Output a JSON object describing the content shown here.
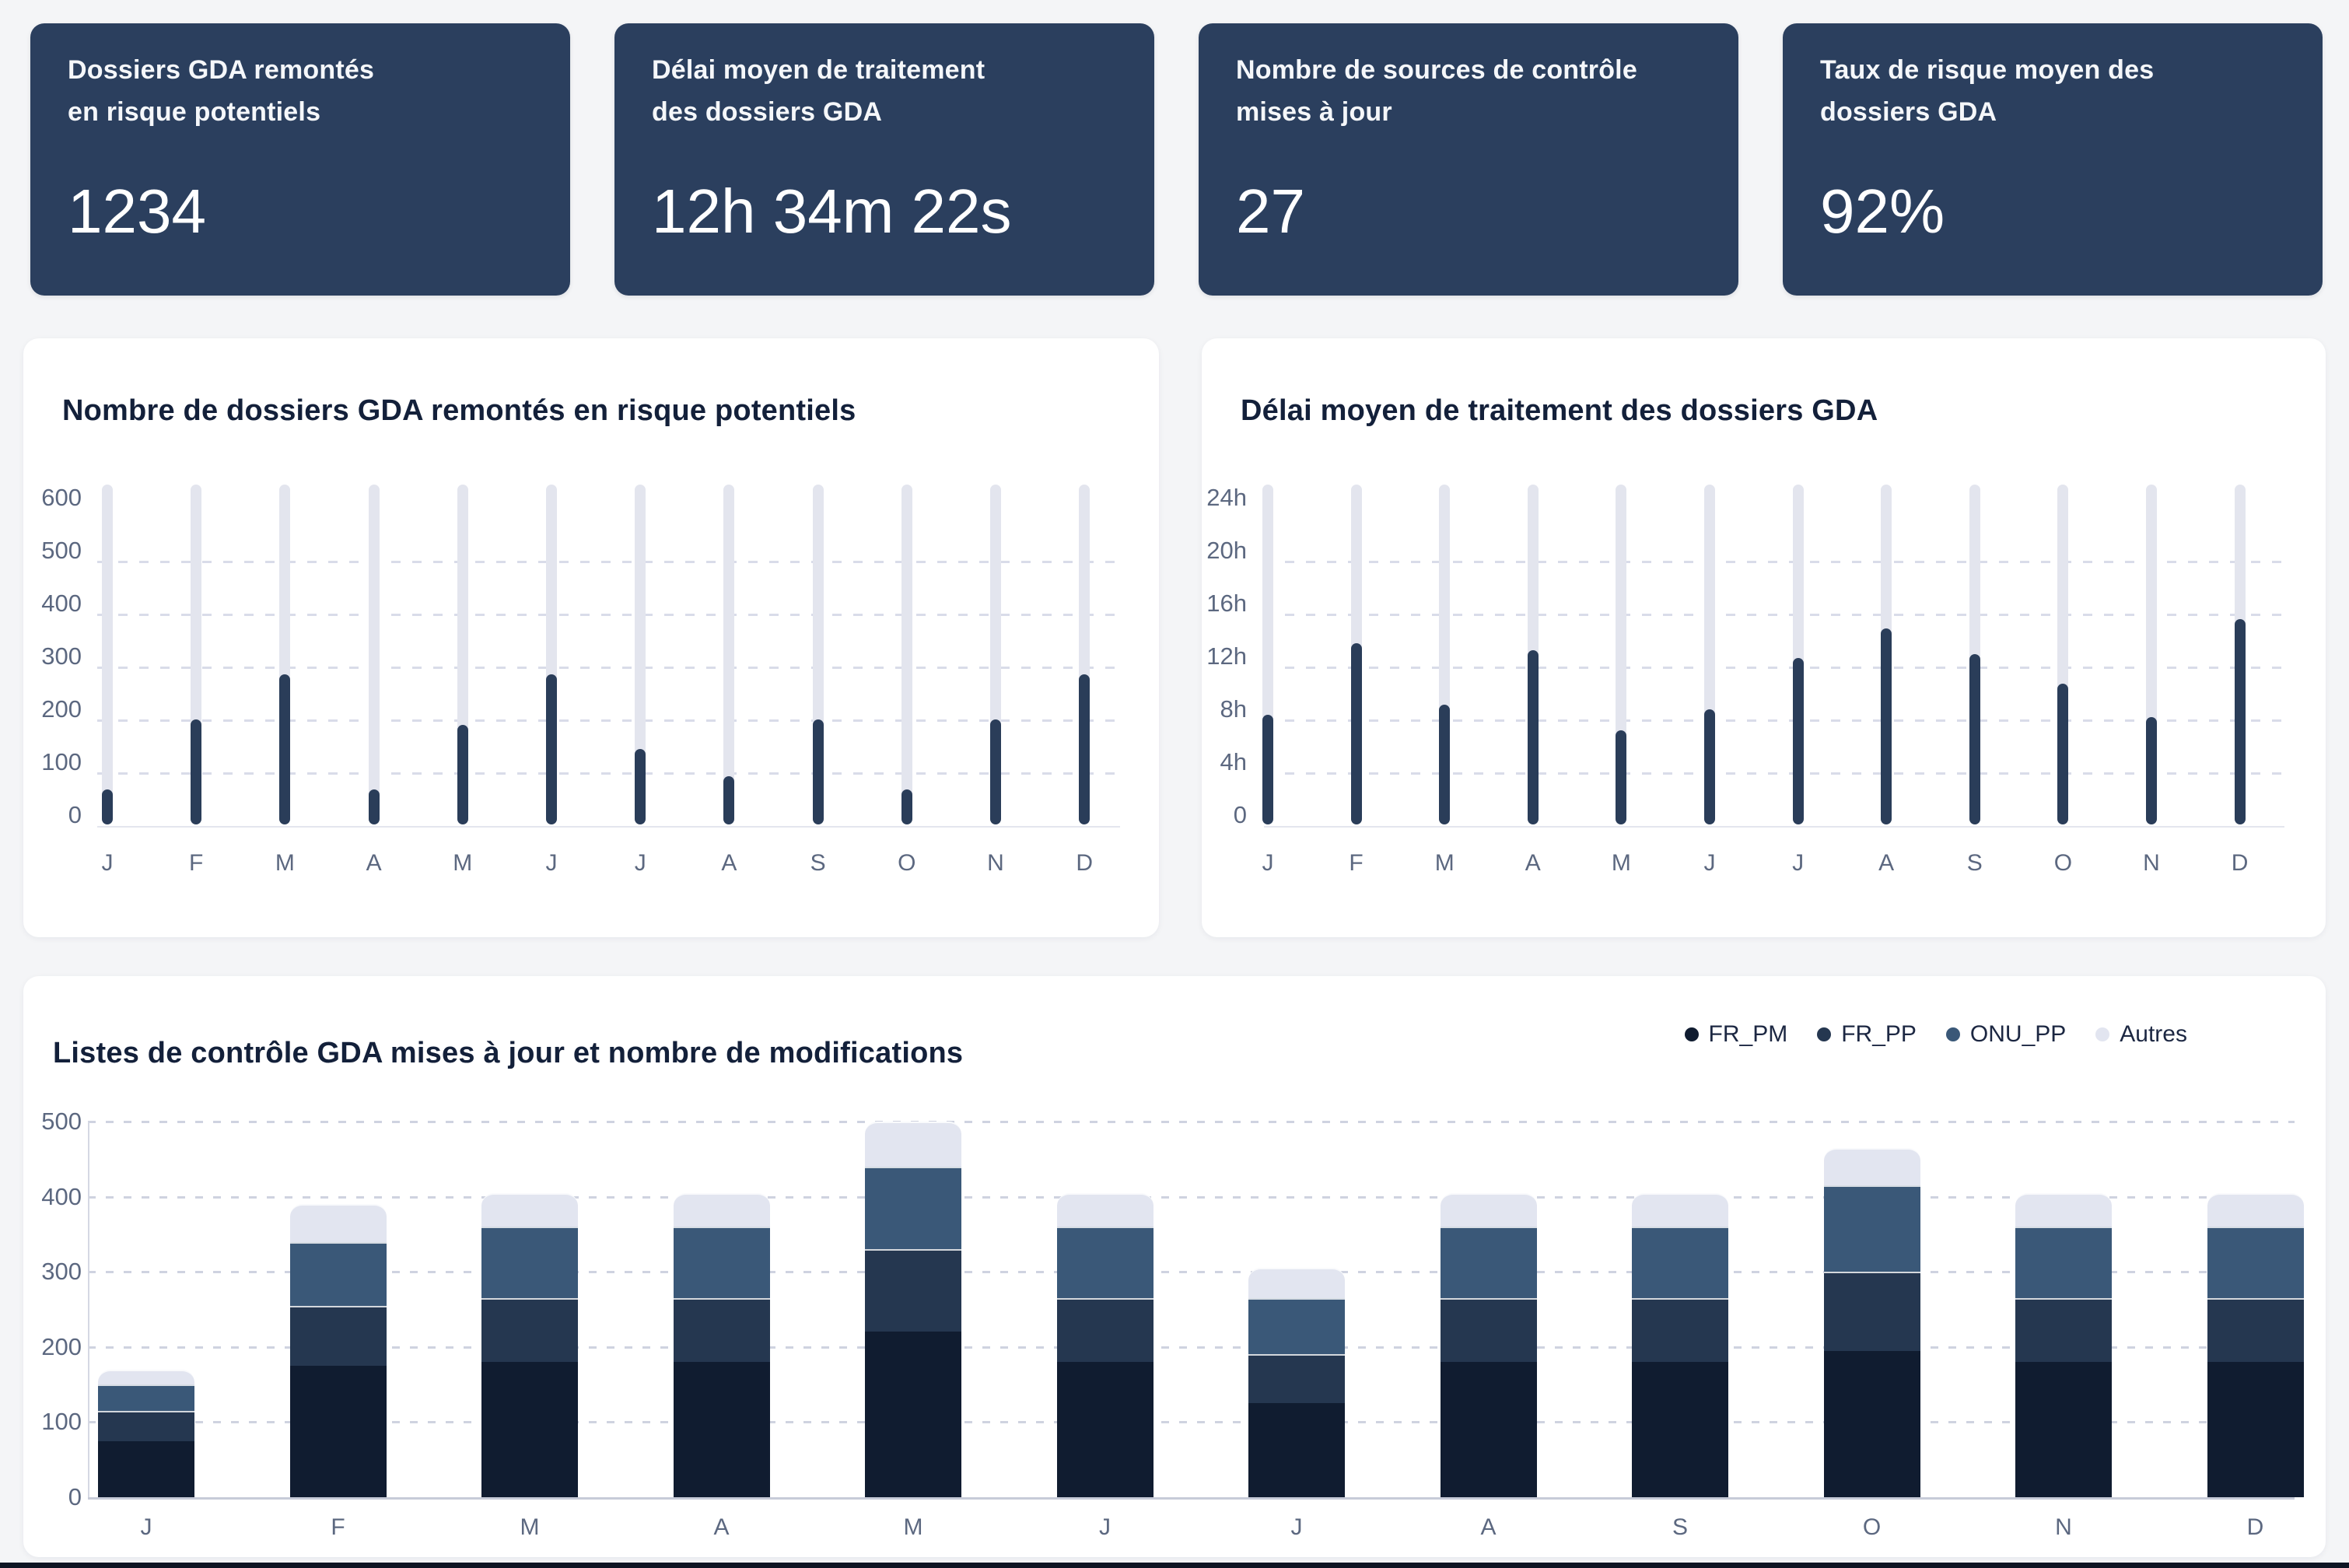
{
  "page": {
    "background": "#f4f5f7",
    "bottom_strip_color": "#0e1523"
  },
  "kpi_cards": [
    {
      "title_lines": [
        "Dossiers GDA remontés",
        "en risque potentiels"
      ],
      "value": "1234"
    },
    {
      "title_lines": [
        "Délai moyen de traitement",
        "des dossiers GDA"
      ],
      "value": "12h 34m 22s"
    },
    {
      "title_lines": [
        "Nombre de sources de contrôle",
        "mises à jour"
      ],
      "value": "27"
    },
    {
      "title_lines": [
        "Taux de risque moyen des",
        "dossiers GDA"
      ],
      "value": "92%"
    }
  ],
  "colors": {
    "kpi_card_bg": "#2b3f5e",
    "title_text": "#13203a",
    "axis_text": "#5c6880"
  },
  "chart_data": [
    {
      "type": "bar",
      "title": "Nombre de dossiers GDA remontés en risque potentiels",
      "categories": [
        "J",
        "F",
        "M",
        "A",
        "M",
        "J",
        "J",
        "A",
        "S",
        "O",
        "N",
        "D"
      ],
      "values": [
        65,
        195,
        280,
        65,
        185,
        280,
        140,
        90,
        195,
        65,
        195,
        280
      ],
      "y_ticks": [
        "600",
        "500",
        "400",
        "300",
        "200",
        "100",
        "0"
      ],
      "ylim": [
        0,
        620
      ],
      "grid": "dashed",
      "legend_position": "none",
      "bar_color": "#2a3d59",
      "track_color": "#e3e5ee"
    },
    {
      "type": "bar",
      "title": "Délai moyen de traitement des dossiers GDA",
      "categories": [
        "J",
        "F",
        "M",
        "A",
        "M",
        "J",
        "J",
        "A",
        "S",
        "O",
        "N",
        "D"
      ],
      "values": [
        8.2,
        13.5,
        8.9,
        13.0,
        7.0,
        8.6,
        12.4,
        14.6,
        12.7,
        10.5,
        8.0,
        15.3
      ],
      "unit": "h",
      "y_ticks": [
        "24h",
        "20h",
        "16h",
        "12h",
        "8h",
        "4h",
        "0"
      ],
      "ylim": [
        0,
        24.8
      ],
      "grid": "dashed",
      "legend_position": "none",
      "bar_color": "#2a3d59",
      "track_color": "#e3e5ee"
    },
    {
      "type": "stacked-bar",
      "title": "Listes de contrôle GDA mises à jour et nombre de modifications",
      "categories": [
        "J",
        "F",
        "M",
        "A",
        "M",
        "J",
        "J",
        "A",
        "S",
        "O",
        "N",
        "D"
      ],
      "series": [
        {
          "name": "FR_PM",
          "color": "#101c30",
          "values": [
            75,
            175,
            180,
            180,
            220,
            180,
            125,
            180,
            180,
            195,
            180,
            180
          ]
        },
        {
          "name": "FR_PP",
          "color": "#253750",
          "values": [
            40,
            80,
            85,
            85,
            110,
            85,
            65,
            85,
            85,
            105,
            85,
            85
          ]
        },
        {
          "name": "ONU_PP",
          "color": "#3a5878",
          "values": [
            35,
            85,
            95,
            95,
            110,
            95,
            75,
            95,
            95,
            115,
            95,
            95
          ]
        },
        {
          "name": "Autres",
          "color": "#e2e5f0",
          "values": [
            20,
            50,
            45,
            45,
            60,
            45,
            40,
            45,
            45,
            50,
            45,
            45
          ]
        }
      ],
      "y_ticks": [
        500,
        400,
        300,
        200,
        100,
        0
      ],
      "ylim": [
        0,
        500
      ],
      "grid": "dotted",
      "legend_position": "top-right"
    }
  ]
}
